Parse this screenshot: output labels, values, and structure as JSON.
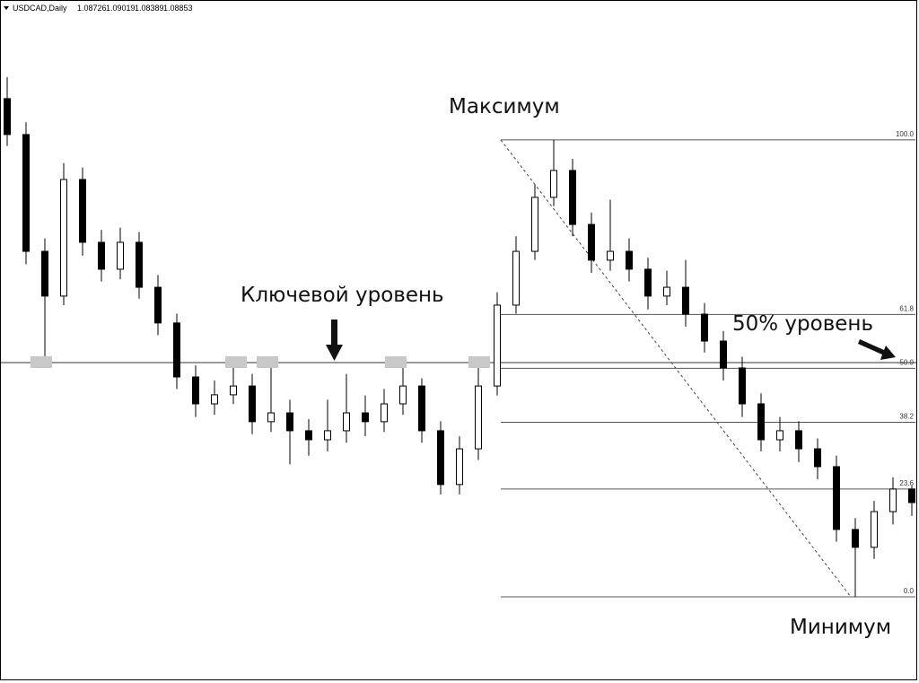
{
  "header": {
    "symbol": "USDCAD,Daily",
    "ohlc": [
      1.08726,
      1.09019,
      1.08389,
      1.08853
    ]
  },
  "chart_data": {
    "type": "candlestick",
    "ylim": [
      1.0,
      1.31
    ],
    "open": [
      1.27,
      1.2533,
      1.199,
      1.1782,
      1.2324,
      1.2032,
      1.1907,
      1.2032,
      1.1823,
      1.1657,
      1.1406,
      1.1281,
      1.1323,
      1.1364,
      1.1198,
      1.1239,
      1.1156,
      1.1114,
      1.1156,
      1.1239,
      1.1198,
      1.1281,
      1.1364,
      1.1156,
      1.0906,
      1.1072,
      1.1364,
      1.174,
      1.199,
      1.2241,
      1.2366,
      1.2115,
      1.1949,
      1.199,
      1.1907,
      1.1782,
      1.1823,
      1.1698,
      1.1573,
      1.1448,
      1.1281,
      1.1114,
      1.1156,
      1.1072,
      1.0989,
      1.0697,
      1.0614,
      1.078,
      1.0885
    ],
    "high": [
      1.28,
      1.259,
      1.205,
      1.24,
      1.238,
      1.209,
      1.21,
      1.208,
      1.188,
      1.17,
      1.146,
      1.139,
      1.1473,
      1.142,
      1.1473,
      1.13,
      1.121,
      1.13,
      1.142,
      1.132,
      1.135,
      1.1473,
      1.14,
      1.12,
      1.113,
      1.1473,
      1.18,
      1.206,
      1.23,
      1.2508,
      1.242,
      1.217,
      1.223,
      1.205,
      1.196,
      1.19,
      1.195,
      1.175,
      1.162,
      1.15,
      1.133,
      1.122,
      1.12,
      1.112,
      1.104,
      1.075,
      1.083,
      1.094,
      1.09
    ],
    "low": [
      1.248,
      1.193,
      1.149,
      1.174,
      1.197,
      1.185,
      1.186,
      1.177,
      1.16,
      1.135,
      1.122,
      1.123,
      1.128,
      1.114,
      1.115,
      1.1,
      1.104,
      1.106,
      1.11,
      1.113,
      1.115,
      1.123,
      1.11,
      1.086,
      1.086,
      1.102,
      1.132,
      1.17,
      1.195,
      1.22,
      1.206,
      1.189,
      1.19,
      1.185,
      1.172,
      1.174,
      1.164,
      1.152,
      1.139,
      1.122,
      1.106,
      1.106,
      1.101,
      1.093,
      1.064,
      1.0384,
      1.056,
      1.072,
      1.076
    ],
    "close": [
      1.2533,
      1.199,
      1.1782,
      1.2324,
      1.2032,
      1.1907,
      1.2032,
      1.1823,
      1.1657,
      1.1406,
      1.1281,
      1.1323,
      1.1364,
      1.1198,
      1.1239,
      1.1156,
      1.1114,
      1.1156,
      1.1239,
      1.1198,
      1.1281,
      1.1364,
      1.1156,
      1.0906,
      1.1072,
      1.1364,
      1.174,
      1.199,
      1.2241,
      1.2366,
      1.2115,
      1.1949,
      1.199,
      1.1907,
      1.1782,
      1.1823,
      1.1698,
      1.1573,
      1.1448,
      1.1281,
      1.1114,
      1.1156,
      1.1072,
      1.0989,
      1.0697,
      1.0614,
      1.078,
      1.0885,
      1.0822
    ],
    "key_level": 1.1473,
    "fibonacci": {
      "high": 1.2508,
      "low": 1.0384,
      "levels": [
        {
          "value": 100,
          "label": "100.0"
        },
        61.8,
        {
          "value": 50,
          "label": "50.0"
        },
        38.2,
        23.6,
        {
          "value": 0,
          "label": "0.0"
        }
      ]
    },
    "annotations": {
      "maximum": "Максимум",
      "key_level": "Ключевой уровень",
      "half_level": "50% уровень",
      "minimum": "Минимум"
    }
  }
}
